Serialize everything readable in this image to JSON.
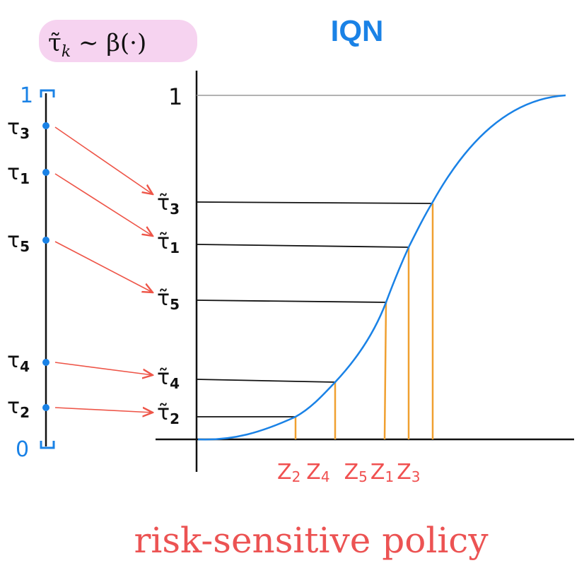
{
  "header": {
    "title": "IQN",
    "sampling_label": {
      "symbol": "τ̃",
      "subscript": "k",
      "rest": " ∼ β(·)"
    }
  },
  "left_axis": {
    "top_label": "1",
    "bottom_label": "0",
    "samples": [
      {
        "symbol": "τ",
        "subscript": "3"
      },
      {
        "symbol": "τ",
        "subscript": "1"
      },
      {
        "symbol": "τ",
        "subscript": "5"
      },
      {
        "symbol": "τ",
        "subscript": "4"
      },
      {
        "symbol": "τ",
        "subscript": "2"
      }
    ]
  },
  "plot": {
    "y_label": "1",
    "levels": [
      {
        "symbol": "τ̃",
        "subscript": "3"
      },
      {
        "symbol": "τ̃",
        "subscript": "1"
      },
      {
        "symbol": "τ̃",
        "subscript": "5"
      },
      {
        "symbol": "τ̃",
        "subscript": "4"
      },
      {
        "symbol": "τ̃",
        "subscript": "2"
      }
    ],
    "x_labels": [
      {
        "symbol": "Z",
        "subscript": "2"
      },
      {
        "symbol": "Z",
        "subscript": "4"
      },
      {
        "symbol": "Z",
        "subscript": "5"
      },
      {
        "symbol": "Z",
        "subscript": "1"
      },
      {
        "symbol": "Z",
        "subscript": "3"
      }
    ]
  },
  "footer": {
    "caption": "risk-sensitive policy"
  }
}
